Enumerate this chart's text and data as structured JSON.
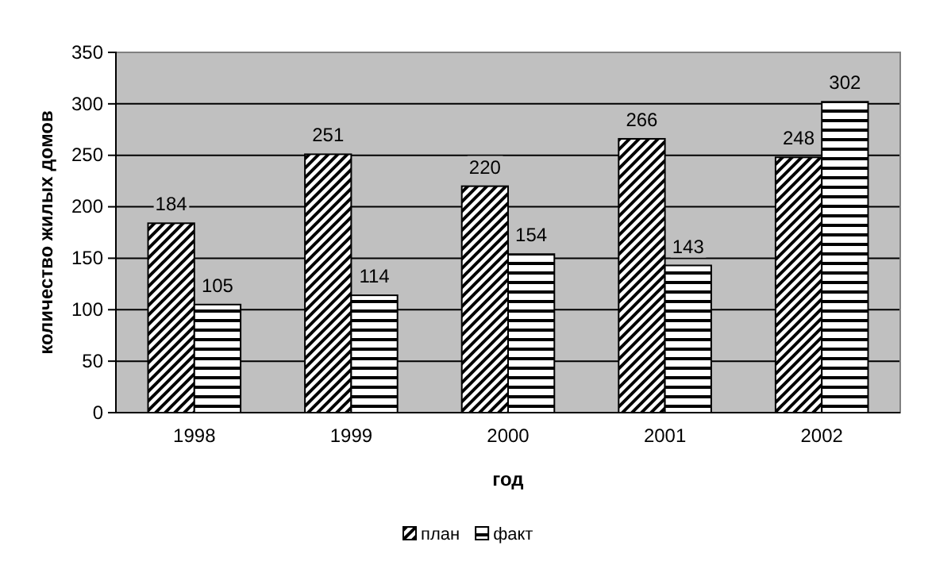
{
  "chart_data": {
    "type": "bar",
    "xlabel": "год",
    "ylabel": "количество жилых домов",
    "categories": [
      "1998",
      "1999",
      "2000",
      "2001",
      "2002"
    ],
    "series": [
      {
        "name": "план",
        "color": "#000000",
        "values": [
          184,
          251,
          220,
          266,
          248
        ]
      },
      {
        "name": "факт",
        "color": "#000000",
        "values": [
          105,
          114,
          154,
          143,
          302
        ]
      }
    ],
    "ylim": [
      0,
      350
    ],
    "yticks": [
      0,
      50,
      100,
      150,
      200,
      250,
      300,
      350
    ],
    "grid": "y",
    "data_labels": true,
    "legend": "bottom"
  }
}
